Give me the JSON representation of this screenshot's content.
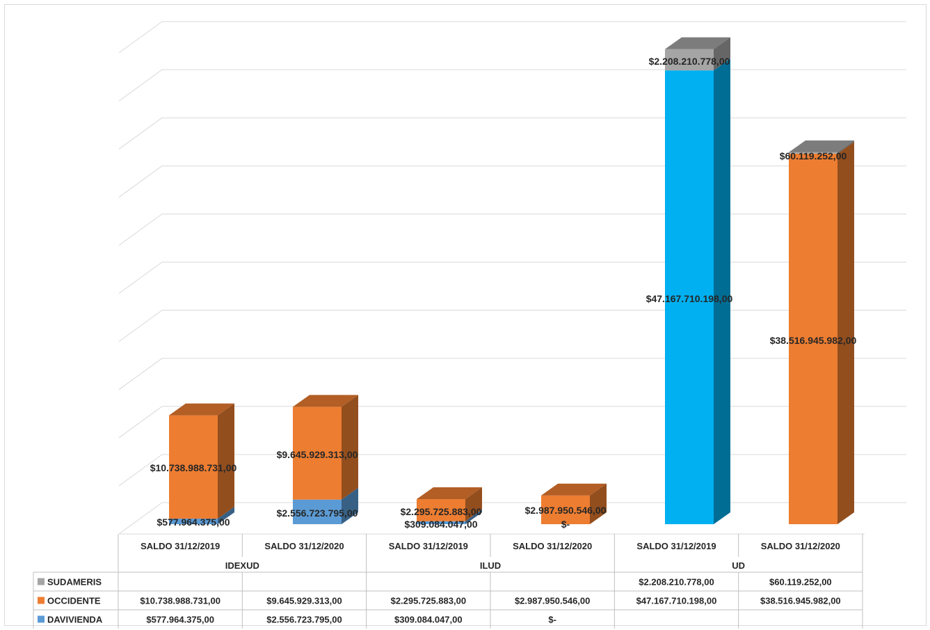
{
  "chart_data": {
    "type": "bar",
    "stacked": true,
    "three_d": true,
    "groups": [
      {
        "name": "IDEXUD",
        "categories": [
          "SALDO 31/12/2019",
          "SALDO 31/12/2020"
        ]
      },
      {
        "name": "ILUD",
        "categories": [
          "SALDO 31/12/2019",
          "SALDO 31/12/2020"
        ]
      },
      {
        "name": "UD",
        "categories": [
          "SALDO 31/12/2019",
          "SALDO 31/12/2020"
        ]
      }
    ],
    "series": [
      {
        "name": "SUDAMERIS",
        "color": "#a5a5a5",
        "values": [
          null,
          null,
          null,
          null,
          2208210778,
          60119252
        ],
        "labels": [
          "",
          "",
          "",
          "",
          "$2.208.210.778,00",
          "$60.119.252,00"
        ]
      },
      {
        "name": "OCCIDENTE",
        "color": "#ed7d31",
        "values": [
          10738988731,
          9645929313,
          2295725883,
          2987950546,
          47167710198,
          38516945982
        ],
        "labels": [
          "$10.738.988.731,00",
          "$9.645.929.313,00",
          "$2.295.725.883,00",
          "$2.987.950.546,00",
          "$47.167.710.198,00",
          "$38.516.945.982,00"
        ]
      },
      {
        "name": "DAVIVIENDA",
        "color": "#5b9bd5",
        "values": [
          577964375,
          2556723795,
          309084047,
          0,
          null,
          null
        ],
        "labels": [
          "$577.964.375,00",
          "$2.556.723.795,00",
          "$309.084.047,00",
          "$-",
          "",
          ""
        ]
      }
    ],
    "ylim": [
      0,
      50000000000
    ],
    "gridlines": 10,
    "grid": true,
    "legend": "data-table"
  }
}
